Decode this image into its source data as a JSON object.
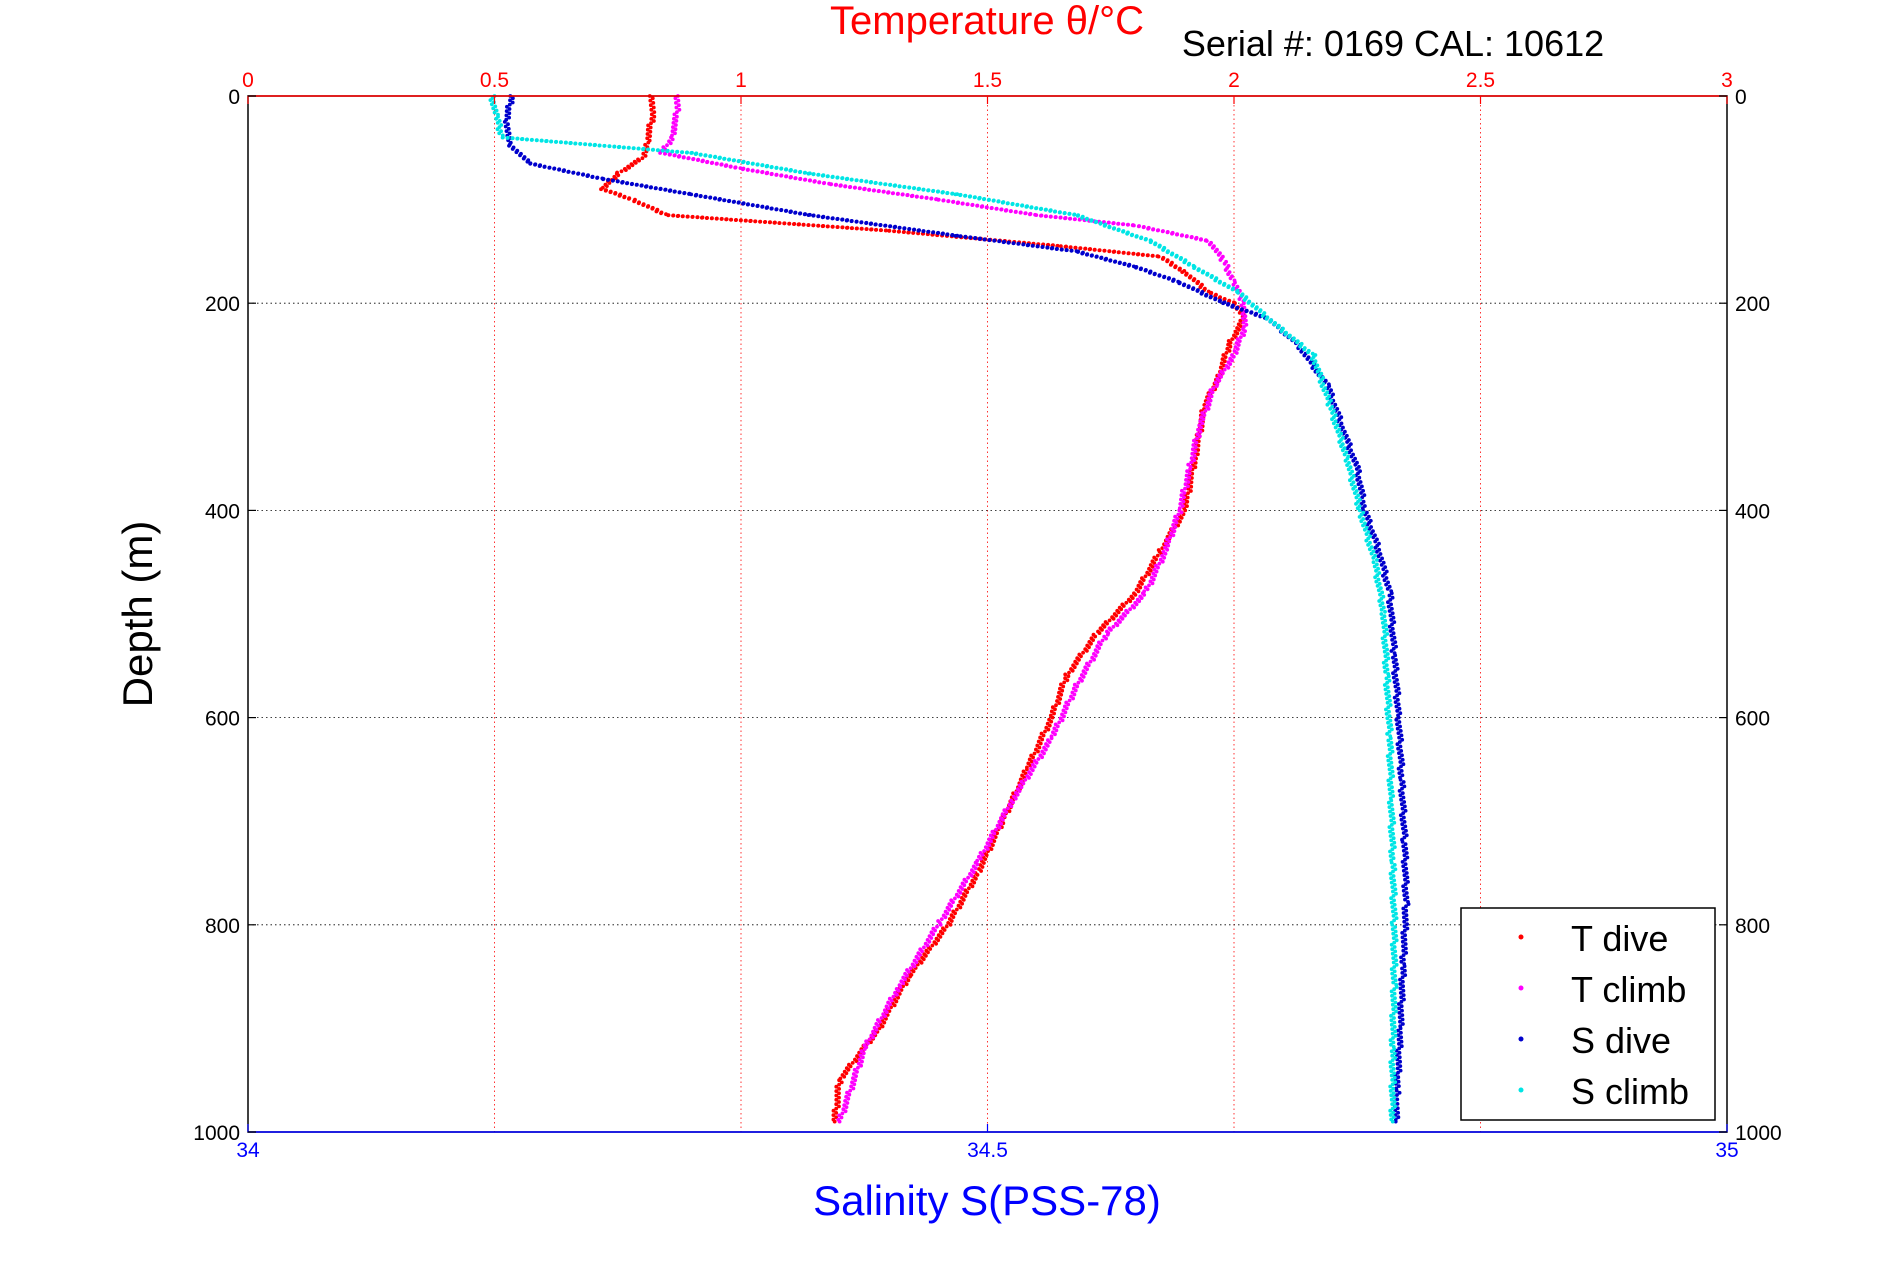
{
  "chart_data": {
    "type": "scatter",
    "title": "Temperature θ/°C",
    "subtitle": "Serial #: 0169 CAL: 10612",
    "xlabel_top": "Temperature θ/°C",
    "xlabel_bottom": "Salinity S(PSS-78)",
    "ylabel": "Depth (m)",
    "temperature_axis": {
      "min": 0,
      "max": 3,
      "ticks": [
        "0",
        "0.5",
        "1",
        "1.5",
        "2",
        "2.5",
        "3"
      ]
    },
    "salinity_axis": {
      "min": 34,
      "max": 35,
      "ticks": [
        "34",
        "34.5",
        "35"
      ]
    },
    "depth_axis": {
      "min": 0,
      "max": 1000,
      "reversed": true,
      "ticks": [
        "0",
        "200",
        "400",
        "600",
        "800",
        "1000"
      ]
    },
    "grid": true,
    "legend": {
      "position": "bottom-right",
      "entries": [
        "T dive",
        "T climb",
        "S dive",
        "S climb"
      ]
    },
    "colors": {
      "t_dive": "#ff0000",
      "t_climb": "#ff00ff",
      "s_dive": "#0000cc",
      "s_climb": "#00e5e5",
      "temp_axis": "#ff0000",
      "sal_axis": "#0000ff"
    },
    "series": [
      {
        "name": "T dive",
        "axis": "temperature",
        "points": [
          [
            0.82,
            0
          ],
          [
            0.82,
            20
          ],
          [
            0.81,
            45
          ],
          [
            0.8,
            60
          ],
          [
            0.75,
            75
          ],
          [
            0.72,
            90
          ],
          [
            0.78,
            100
          ],
          [
            0.85,
            115
          ],
          [
            1.3,
            130
          ],
          [
            1.65,
            145
          ],
          [
            1.85,
            155
          ],
          [
            1.9,
            170
          ],
          [
            1.95,
            190
          ],
          [
            2.0,
            200
          ],
          [
            2.02,
            215
          ],
          [
            1.99,
            240
          ],
          [
            1.97,
            270
          ],
          [
            1.94,
            300
          ],
          [
            1.92,
            350
          ],
          [
            1.9,
            400
          ],
          [
            1.85,
            440
          ],
          [
            1.8,
            480
          ],
          [
            1.72,
            520
          ],
          [
            1.66,
            560
          ],
          [
            1.63,
            600
          ],
          [
            1.58,
            650
          ],
          [
            1.53,
            700
          ],
          [
            1.48,
            750
          ],
          [
            1.42,
            800
          ],
          [
            1.34,
            850
          ],
          [
            1.28,
            900
          ],
          [
            1.2,
            950
          ],
          [
            1.19,
            990
          ]
        ]
      },
      {
        "name": "T climb",
        "axis": "temperature",
        "points": [
          [
            0.87,
            0
          ],
          [
            0.87,
            20
          ],
          [
            0.86,
            40
          ],
          [
            0.84,
            55
          ],
          [
            1.0,
            70
          ],
          [
            1.18,
            85
          ],
          [
            1.4,
            100
          ],
          [
            1.6,
            115
          ],
          [
            1.8,
            125
          ],
          [
            1.95,
            140
          ],
          [
            1.98,
            160
          ],
          [
            2.0,
            180
          ],
          [
            2.02,
            200
          ],
          [
            2.02,
            225
          ],
          [
            2.0,
            250
          ],
          [
            1.96,
            280
          ],
          [
            1.93,
            320
          ],
          [
            1.91,
            360
          ],
          [
            1.89,
            400
          ],
          [
            1.86,
            440
          ],
          [
            1.82,
            480
          ],
          [
            1.74,
            520
          ],
          [
            1.68,
            570
          ],
          [
            1.63,
            620
          ],
          [
            1.55,
            680
          ],
          [
            1.48,
            740
          ],
          [
            1.4,
            800
          ],
          [
            1.32,
            860
          ],
          [
            1.25,
            920
          ],
          [
            1.2,
            990
          ]
        ]
      },
      {
        "name": "S dive",
        "axis": "salinity",
        "points": [
          [
            34.178,
            0
          ],
          [
            34.175,
            25
          ],
          [
            34.176,
            45
          ],
          [
            34.19,
            65
          ],
          [
            34.24,
            80
          ],
          [
            34.3,
            95
          ],
          [
            34.38,
            115
          ],
          [
            34.48,
            135
          ],
          [
            34.56,
            150
          ],
          [
            34.6,
            165
          ],
          [
            34.63,
            180
          ],
          [
            34.66,
            200
          ],
          [
            34.69,
            215
          ],
          [
            34.71,
            240
          ],
          [
            34.73,
            280
          ],
          [
            34.74,
            320
          ],
          [
            34.75,
            360
          ],
          [
            34.755,
            400
          ],
          [
            34.765,
            440
          ],
          [
            34.772,
            480
          ],
          [
            34.775,
            540
          ],
          [
            34.778,
            600
          ],
          [
            34.78,
            660
          ],
          [
            34.782,
            720
          ],
          [
            34.783,
            780
          ],
          [
            34.781,
            840
          ],
          [
            34.779,
            900
          ],
          [
            34.777,
            960
          ],
          [
            34.776,
            990
          ]
        ]
      },
      {
        "name": "S climb",
        "axis": "salinity",
        "points": [
          [
            34.165,
            0
          ],
          [
            34.168,
            20
          ],
          [
            34.172,
            40
          ],
          [
            34.3,
            55
          ],
          [
            34.38,
            75
          ],
          [
            34.48,
            95
          ],
          [
            34.56,
            115
          ],
          [
            34.61,
            140
          ],
          [
            34.64,
            165
          ],
          [
            34.67,
            190
          ],
          [
            34.69,
            215
          ],
          [
            34.72,
            250
          ],
          [
            34.732,
            300
          ],
          [
            34.743,
            350
          ],
          [
            34.752,
            400
          ],
          [
            34.762,
            450
          ],
          [
            34.768,
            500
          ],
          [
            34.77,
            560
          ],
          [
            34.772,
            620
          ],
          [
            34.773,
            680
          ],
          [
            34.774,
            740
          ],
          [
            34.775,
            800
          ],
          [
            34.775,
            860
          ],
          [
            34.774,
            920
          ],
          [
            34.774,
            990
          ]
        ]
      }
    ]
  }
}
